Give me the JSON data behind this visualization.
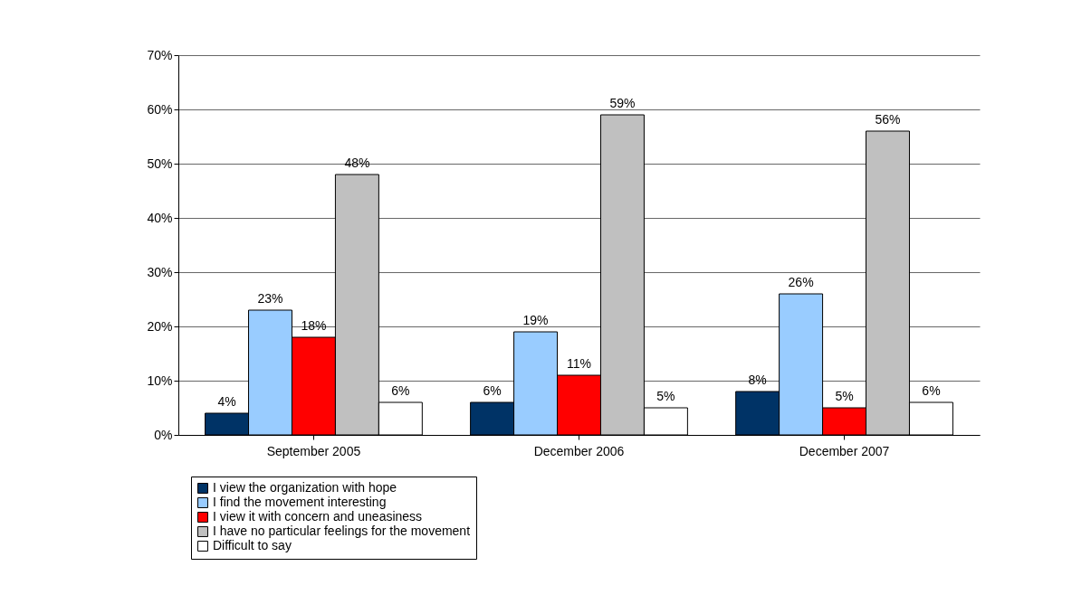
{
  "chart_data": {
    "type": "bar",
    "categories": [
      "September 2005",
      "December 2006",
      "December 2007"
    ],
    "series": [
      {
        "name": "I view the organization with hope",
        "color": "#003366",
        "values": [
          4,
          6,
          8
        ],
        "value_labels": [
          "4%",
          "6%",
          "8%"
        ]
      },
      {
        "name": "I find the movement interesting",
        "color": "#99ccff",
        "values": [
          23,
          19,
          26
        ],
        "value_labels": [
          "23%",
          "19%",
          "26%"
        ]
      },
      {
        "name": "I view it with concern and uneasiness",
        "color": "#ff0000",
        "values": [
          18,
          11,
          5
        ],
        "value_labels": [
          "18%",
          "11%",
          "5%"
        ]
      },
      {
        "name": "I have no particular feelings for the movement",
        "color": "#c0c0c0",
        "values": [
          48,
          59,
          56
        ],
        "value_labels": [
          "48%",
          "59%",
          "56%"
        ]
      },
      {
        "name": "Difficult to say",
        "color": "#ffffff",
        "values": [
          6,
          5,
          6
        ],
        "value_labels": [
          "6%",
          "5%",
          "6%"
        ]
      }
    ],
    "ylim": [
      0,
      70
    ],
    "yticks": [
      {
        "value": 0,
        "label": "0%"
      },
      {
        "value": 10,
        "label": "10%"
      },
      {
        "value": 20,
        "label": "20%"
      },
      {
        "value": 30,
        "label": "30%"
      },
      {
        "value": 40,
        "label": "40%"
      },
      {
        "value": 50,
        "label": "50%"
      },
      {
        "value": 60,
        "label": "60%"
      },
      {
        "value": 70,
        "label": "70%"
      }
    ],
    "grid": "y",
    "legend": "bottom"
  }
}
